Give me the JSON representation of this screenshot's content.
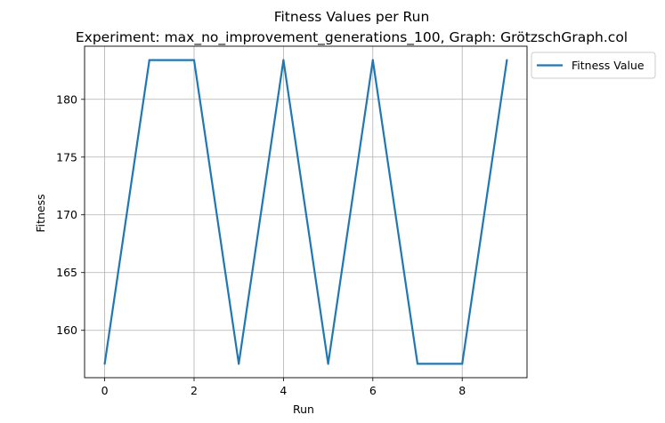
{
  "chart_data": {
    "type": "line",
    "title": "Fitness Values per Run",
    "subtitle": "Experiment: max_no_improvement_generations_100, Graph: GrötzschGraph.col",
    "xlabel": "Run",
    "ylabel": "Fitness",
    "xlim": [
      -0.45,
      9.45
    ],
    "ylim": [
      155.9,
      184.6
    ],
    "xticks": [
      0,
      2,
      4,
      6,
      8
    ],
    "yticks": [
      160,
      165,
      170,
      175,
      180
    ],
    "grid": true,
    "legend_position": "outside-top-right",
    "series": [
      {
        "name": "Fitness Value",
        "color": "#1f77b4",
        "x": [
          0,
          1,
          2,
          3,
          4,
          5,
          6,
          7,
          8,
          9
        ],
        "values": [
          157.1,
          183.4,
          183.4,
          157.1,
          183.4,
          157.1,
          183.4,
          157.1,
          157.1,
          183.4
        ]
      }
    ]
  }
}
